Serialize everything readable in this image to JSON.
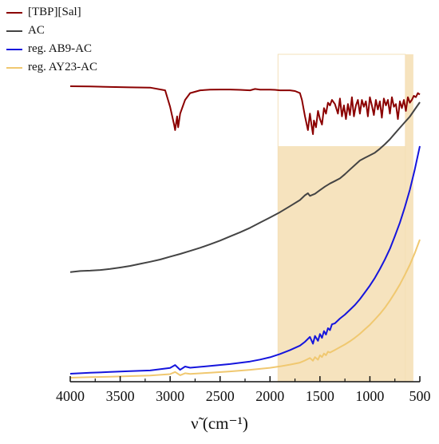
{
  "chart_data": {
    "type": "line",
    "xlabel": "ν̃ (cm⁻¹)",
    "ylabel": "",
    "xlim": [
      4000,
      500
    ],
    "x_reversed": true,
    "x_ticks": [
      4000,
      3500,
      3000,
      2500,
      2000,
      1500,
      1000,
      500
    ],
    "x_tick_labels": [
      "4000",
      "3500",
      "3000",
      "2500",
      "2000",
      "1500",
      "1000",
      "500"
    ],
    "y_ticks_shown": false,
    "grid": false,
    "legend_position": "top-left",
    "highlight_regions": [
      {
        "x_from": 1920,
        "x_to": 645,
        "color": "#f5deb3",
        "note_type": "lower-box"
      },
      {
        "x_from": 645,
        "x_to": 565,
        "color": "#f5deb3",
        "note_type": "full-band"
      }
    ],
    "series": [
      {
        "name": "[TBP][Sal]",
        "color": "#8b0000",
        "x": [
          4000,
          3800,
          3600,
          3400,
          3200,
          3050,
          3000,
          2960,
          2950,
          2930,
          2920,
          2900,
          2870,
          2850,
          2800,
          2700,
          2600,
          2500,
          2400,
          2300,
          2200,
          2150,
          2100,
          2000,
          1950,
          1900,
          1800,
          1750,
          1700,
          1680,
          1650,
          1620,
          1600,
          1585,
          1570,
          1560,
          1540,
          1520,
          1500,
          1480,
          1460,
          1440,
          1420,
          1400,
          1380,
          1350,
          1320,
          1300,
          1280,
          1260,
          1240,
          1220,
          1200,
          1180,
          1160,
          1140,
          1120,
          1100,
          1080,
          1060,
          1040,
          1020,
          1000,
          980,
          960,
          940,
          920,
          900,
          880,
          860,
          840,
          820,
          800,
          780,
          760,
          740,
          720,
          700,
          680,
          660,
          640,
          620,
          600,
          580,
          560,
          540,
          520,
          500
        ],
        "y": [
          100,
          99.8,
          99.5,
          99.2,
          99,
          97,
          85,
          72,
          68,
          78,
          70,
          80,
          86,
          90,
          95,
          97,
          97.5,
          97.6,
          97.6,
          97.4,
          97,
          98,
          97.5,
          97.5,
          97.4,
          97,
          97,
          96.5,
          95,
          90,
          78,
          68,
          80,
          72,
          65,
          75,
          70,
          82,
          76,
          72,
          84,
          80,
          88,
          86,
          90,
          87,
          80,
          91,
          78,
          86,
          76,
          87,
          79,
          92,
          78,
          86,
          90,
          80,
          90,
          85,
          89,
          78,
          92,
          86,
          79,
          90,
          83,
          89,
          77,
          91,
          86,
          90,
          80,
          92,
          85,
          87,
          76,
          89,
          84,
          90,
          82,
          92,
          88,
          90,
          93,
          92,
          95,
          94
        ]
      },
      {
        "name": "AC",
        "color": "#444444",
        "x": [
          4000,
          3900,
          3800,
          3700,
          3600,
          3500,
          3400,
          3300,
          3200,
          3100,
          3000,
          2900,
          2800,
          2700,
          2600,
          2500,
          2400,
          2300,
          2200,
          2100,
          2000,
          1900,
          1800,
          1700,
          1650,
          1620,
          1600,
          1550,
          1500,
          1450,
          1400,
          1350,
          1300,
          1250,
          1200,
          1150,
          1100,
          1050,
          1000,
          950,
          900,
          850,
          800,
          750,
          700,
          650,
          600,
          550,
          500
        ],
        "y": [
          48.5,
          49,
          49.2,
          49.5,
          50,
          50.7,
          51.5,
          52.5,
          53.5,
          54.6,
          56,
          57.3,
          58.8,
          60.3,
          62,
          63.8,
          65.8,
          67.8,
          70,
          72.5,
          75,
          77.6,
          80.5,
          83.5,
          85.8,
          86.8,
          85.5,
          86.5,
          88.3,
          90,
          91.5,
          92.7,
          94,
          96,
          98.3,
          100.5,
          102.7,
          104,
          105.2,
          106.5,
          108.4,
          110.6,
          113,
          115.8,
          118.6,
          121.3,
          124,
          127.5,
          131
        ]
      },
      {
        "name": "reg. AB9-AC",
        "color": "#1515dd",
        "x": [
          4000,
          3800,
          3600,
          3400,
          3200,
          3000,
          2950,
          2900,
          2850,
          2800,
          2600,
          2400,
          2200,
          2100,
          2000,
          1900,
          1800,
          1700,
          1650,
          1600,
          1570,
          1550,
          1520,
          1500,
          1480,
          1460,
          1440,
          1420,
          1400,
          1380,
          1350,
          1300,
          1250,
          1200,
          1150,
          1100,
          1050,
          1000,
          950,
          900,
          850,
          800,
          750,
          700,
          650,
          600,
          550,
          500
        ],
        "y": [
          2.5,
          3,
          3.4,
          3.8,
          4.2,
          5.5,
          7,
          4.5,
          6.2,
          5.6,
          6.5,
          7.5,
          8.8,
          9.8,
          11,
          12.7,
          14.7,
          17,
          19,
          21.5,
          18,
          22,
          19.5,
          23,
          21,
          24.5,
          22.7,
          26,
          25,
          28,
          28.5,
          31,
          33,
          35.5,
          38,
          41,
          44.5,
          48,
          52,
          56.5,
          61.5,
          67,
          73.5,
          80.5,
          88.5,
          97.5,
          108,
          120
        ]
      },
      {
        "name": "reg. AY23-AC",
        "color": "#f0c870",
        "x": [
          4000,
          3800,
          3600,
          3400,
          3200,
          3000,
          2950,
          2900,
          2850,
          2800,
          2600,
          2400,
          2200,
          2000,
          1900,
          1800,
          1700,
          1650,
          1600,
          1570,
          1550,
          1520,
          1500,
          1480,
          1460,
          1440,
          1420,
          1400,
          1350,
          1300,
          1250,
          1200,
          1150,
          1100,
          1050,
          1000,
          950,
          900,
          850,
          800,
          750,
          700,
          650,
          600,
          550,
          500
        ],
        "y": [
          0,
          0.3,
          0.6,
          0.9,
          1.2,
          2,
          3.2,
          1.4,
          2.5,
          2.1,
          2.8,
          3.5,
          4.4,
          5.5,
          6.3,
          7.3,
          8.4,
          9.6,
          11,
          9.5,
          11.5,
          10,
          12.5,
          11.5,
          13.5,
          12.5,
          14.5,
          14,
          15.5,
          17,
          18.5,
          20.3,
          22.3,
          24.5,
          27,
          29.5,
          32.5,
          35.5,
          39,
          43,
          47.3,
          52,
          57.3,
          63,
          69.5,
          77
        ]
      }
    ]
  }
}
